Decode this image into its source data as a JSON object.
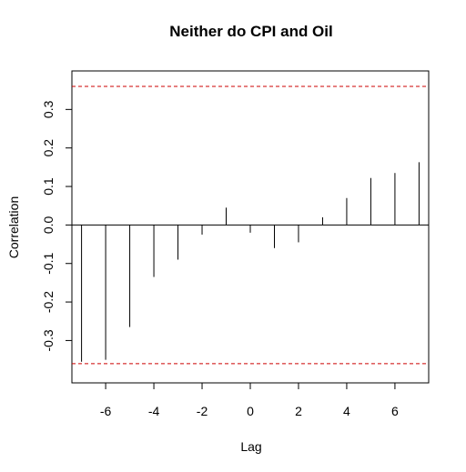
{
  "chart_data": {
    "type": "bar",
    "title": "Neither do CPI and Oil",
    "xlabel": "Lag",
    "ylabel": "Correlation",
    "xlim": [
      -7.4,
      7.4
    ],
    "ylim": [
      -0.41,
      0.4
    ],
    "x_ticks": [
      -6,
      -4,
      -2,
      0,
      2,
      4,
      6
    ],
    "y_ticks": [
      -0.3,
      -0.2,
      -0.1,
      0.0,
      0.1,
      0.2,
      0.3
    ],
    "x_tick_labels": [
      "-6",
      "-4",
      "-2",
      "0",
      "2",
      "4",
      "6"
    ],
    "y_tick_labels": [
      "-0.3",
      "-0.2",
      "-0.1",
      "0.0",
      "0.1",
      "0.2",
      "0.3"
    ],
    "lags": [
      -7,
      -6,
      -5,
      -4,
      -3,
      -2,
      -1,
      0,
      1,
      2,
      3,
      4,
      5,
      6,
      7
    ],
    "correlations": [
      -0.355,
      -0.35,
      -0.265,
      -0.135,
      -0.09,
      -0.025,
      0.045,
      -0.02,
      -0.06,
      -0.045,
      0.02,
      0.07,
      0.122,
      0.135,
      0.163
    ],
    "confidence_bound": 0.36,
    "colors": {
      "bars": "#000000",
      "bound_line": "#cc0000",
      "zero_line": "#000000"
    },
    "grid": false,
    "legend": "none"
  }
}
